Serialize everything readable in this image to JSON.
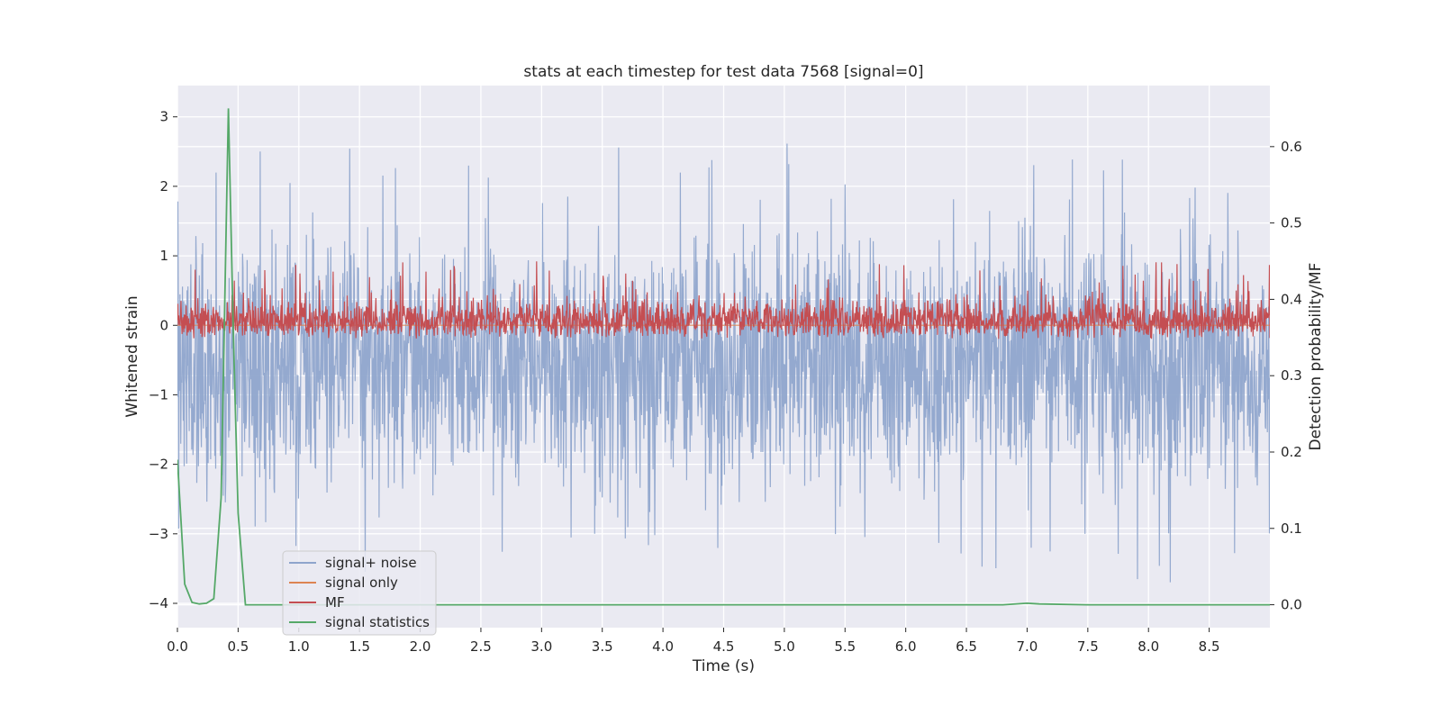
{
  "chart_data": {
    "type": "line",
    "title": "stats at each timestep for test data 7568 [signal=0]",
    "xlabel": "Time (s)",
    "ylabel": "Whitened strain",
    "y2label": "Detection probability/MF",
    "xlim": [
      0.0,
      9.0
    ],
    "ylim": [
      -4.35,
      3.45
    ],
    "y2lim": [
      -0.03,
      0.68
    ],
    "xticks": [
      0.0,
      0.5,
      1.0,
      1.5,
      2.0,
      2.5,
      3.0,
      3.5,
      4.0,
      4.5,
      5.0,
      5.5,
      6.0,
      6.5,
      7.0,
      7.5,
      8.0,
      8.5
    ],
    "xtick_labels": [
      "0.0",
      "0.5",
      "1.0",
      "1.5",
      "2.0",
      "2.5",
      "3.0",
      "3.5",
      "4.0",
      "4.5",
      "5.0",
      "5.5",
      "6.0",
      "6.5",
      "7.0",
      "7.5",
      "8.0",
      "8.5"
    ],
    "yticks": [
      -4,
      -3,
      -2,
      -1,
      0,
      1,
      2,
      3
    ],
    "ytick_labels": [
      "−4",
      "−3",
      "−2",
      "−1",
      "0",
      "1",
      "2",
      "3"
    ],
    "y2ticks": [
      0.0,
      0.1,
      0.2,
      0.3,
      0.4,
      0.5,
      0.6
    ],
    "y2tick_labels": [
      "0.0",
      "0.1",
      "0.2",
      "0.3",
      "0.4",
      "0.5",
      "0.6"
    ],
    "grid": true,
    "legend_position": "lower-left",
    "colors": {
      "plot_bg": "#eaeaf2",
      "grid": "#ffffff",
      "noise": "#8fa5cc",
      "signal_only": "#dd8452",
      "mf": "#c44e52",
      "stats": "#55a868"
    },
    "series": [
      {
        "name": "signal+ noise",
        "axis": "left",
        "kind": "noise-band",
        "color": "#8fa5cc",
        "approx": {
          "center": -0.55,
          "typical_amplitude": 1.2,
          "max": 3.1,
          "min": -4.0
        }
      },
      {
        "name": "signal only",
        "axis": "left",
        "color": "#dd8452",
        "x": [
          0.0,
          9.0
        ],
        "y": [
          0.0,
          0.0
        ]
      },
      {
        "name": "MF",
        "axis": "right",
        "kind": "noise-band",
        "color": "#c44e52",
        "approx": {
          "baseline": 0.36,
          "min": 0.35,
          "max": 0.45
        }
      },
      {
        "name": "signal statistics",
        "axis": "right",
        "color": "#55a868",
        "x": [
          0.0,
          0.06,
          0.12,
          0.18,
          0.24,
          0.3,
          0.36,
          0.42,
          0.46,
          0.5,
          0.56,
          1.0,
          2.0,
          3.0,
          4.0,
          5.0,
          6.0,
          6.8,
          7.0,
          7.1,
          7.5,
          8.0,
          9.0
        ],
        "y": [
          0.19,
          0.027,
          0.003,
          0.001,
          0.002,
          0.008,
          0.14,
          0.65,
          0.36,
          0.12,
          0.0,
          0.0,
          0.0,
          0.0,
          0.0,
          0.0,
          0.0,
          0.0,
          0.002,
          0.001,
          0.0,
          0.0,
          0.0
        ]
      }
    ]
  }
}
